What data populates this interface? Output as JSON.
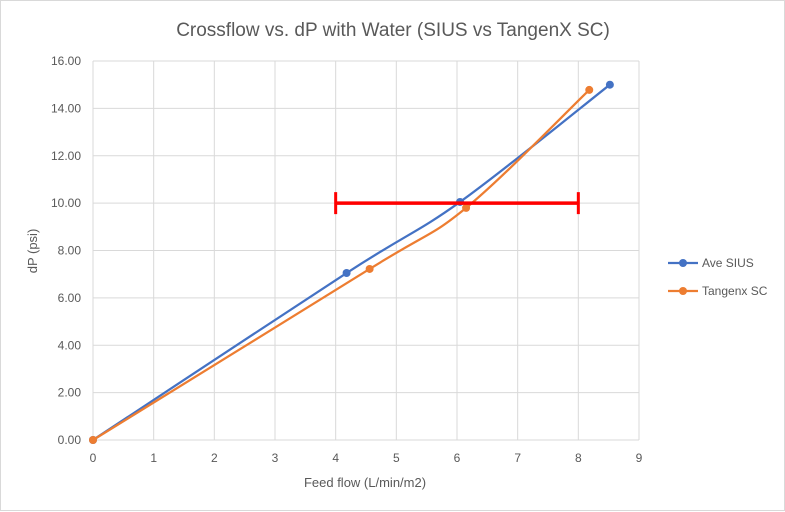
{
  "chart_data": {
    "type": "line",
    "title": "Crossflow vs. dP with Water (SIUS vs TangenX SC)",
    "xlabel": "Feed flow (L/min/m2)",
    "ylabel": "dP (psi)",
    "xlim": [
      0,
      9
    ],
    "ylim": [
      0,
      16
    ],
    "x_ticks": [
      "0",
      "1",
      "2",
      "3",
      "4",
      "5",
      "6",
      "7",
      "8",
      "9"
    ],
    "y_ticks": [
      "0.00",
      "2.00",
      "4.00",
      "6.00",
      "8.00",
      "10.00",
      "12.00",
      "14.00",
      "16.00"
    ],
    "grid": true,
    "legend_position": "right",
    "series": [
      {
        "name": "Ave SIUS",
        "color": "#4472C4",
        "points": [
          [
            0,
            0
          ],
          [
            4.18,
            7.05
          ],
          [
            6.05,
            10.05
          ],
          [
            8.52,
            15.0
          ]
        ]
      },
      {
        "name": "Tangenx SC",
        "color": "#ED7D31",
        "points": [
          [
            0,
            0
          ],
          [
            4.56,
            7.22
          ],
          [
            6.15,
            9.8
          ],
          [
            8.18,
            14.78
          ]
        ]
      }
    ],
    "annotations": [
      {
        "type": "range-bar",
        "color": "#FF0000",
        "x_from": 4.0,
        "x_to": 8.0,
        "y": 10.0
      }
    ]
  }
}
